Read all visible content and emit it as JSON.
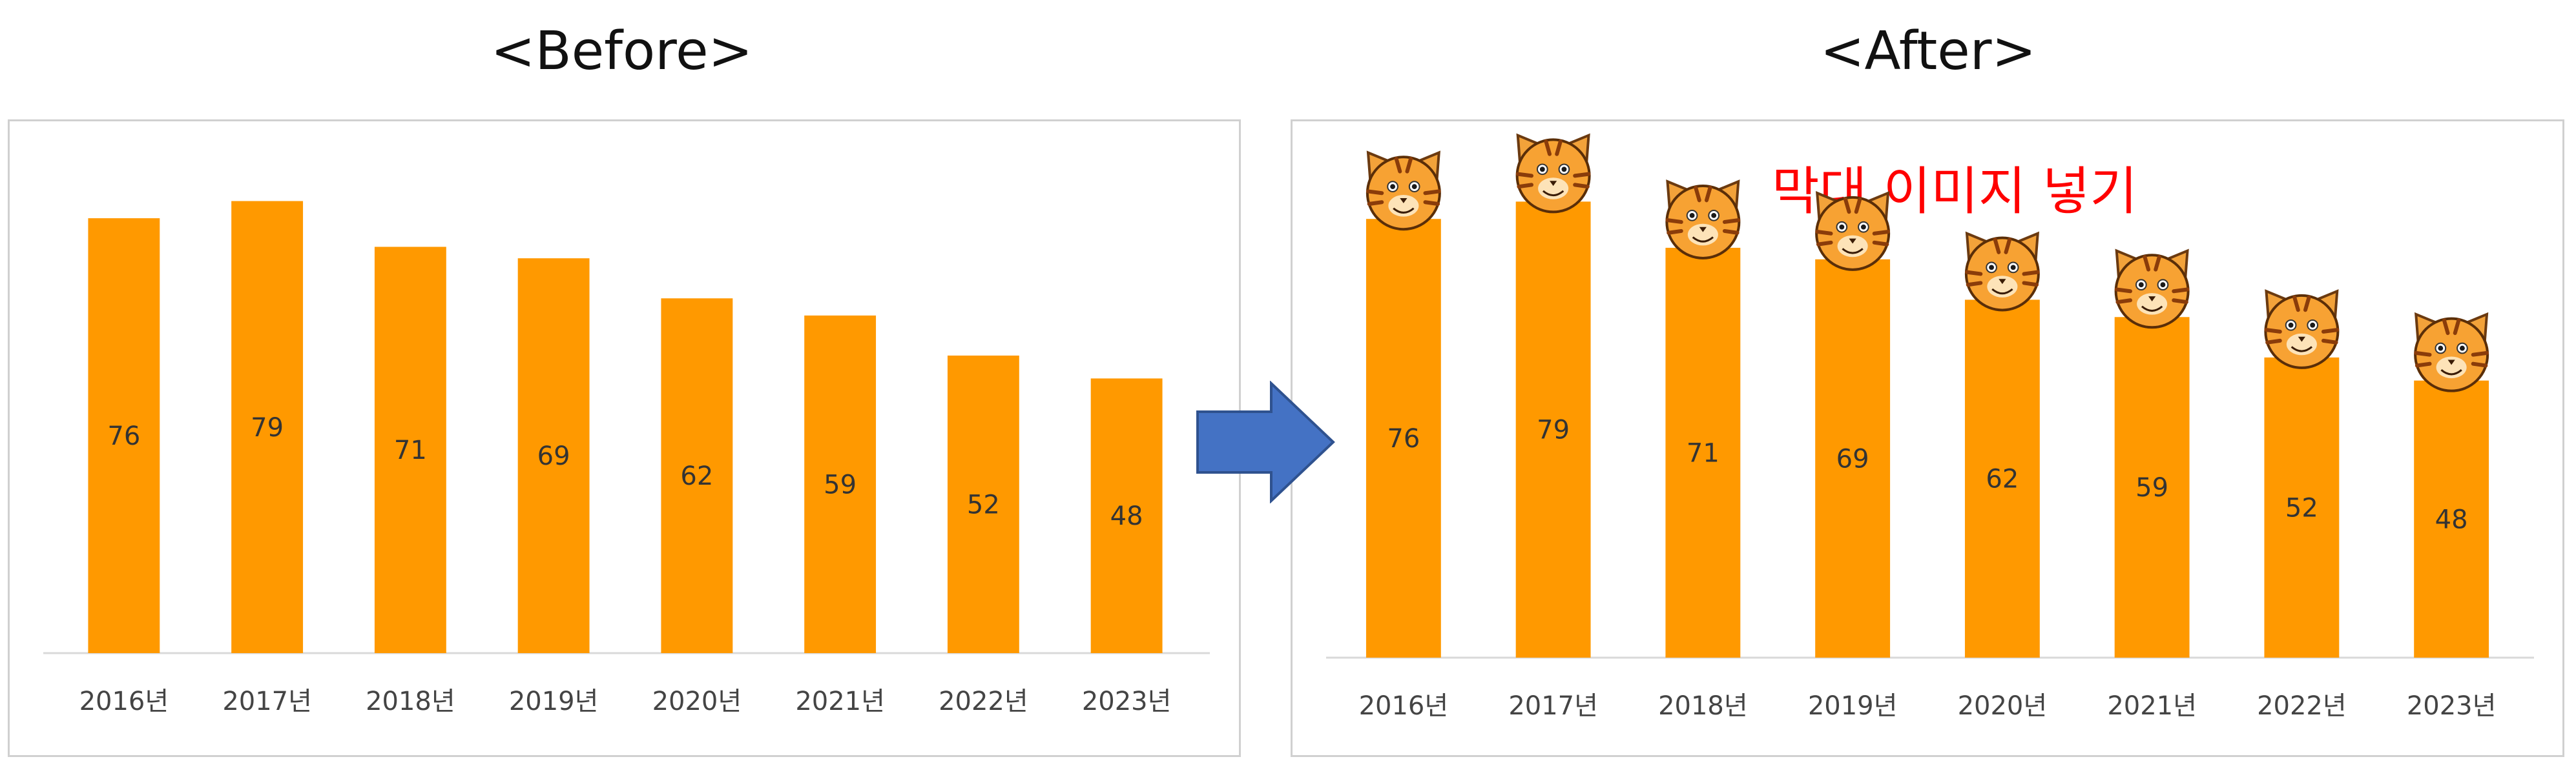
{
  "titles": {
    "before": "<Before>",
    "after": "<After>"
  },
  "colors": {
    "bar": "#FF9900",
    "arrow": "#4472C4",
    "after_title": "#FF0000"
  },
  "icons": {
    "bar_top": "tiger-face-icon",
    "transition": "right-arrow-icon"
  },
  "chart_data": [
    {
      "type": "bar",
      "panel": "before",
      "categories": [
        "2016년",
        "2017년",
        "2018년",
        "2019년",
        "2020년",
        "2021년",
        "2022년",
        "2023년"
      ],
      "values": [
        76,
        79,
        71,
        69,
        62,
        59,
        52,
        48
      ],
      "title": "",
      "xlabel": "",
      "ylabel": "",
      "ylim": [
        0,
        90
      ],
      "grid": false,
      "data_labels": true
    },
    {
      "type": "bar",
      "panel": "after",
      "categories": [
        "2016년",
        "2017년",
        "2018년",
        "2019년",
        "2020년",
        "2021년",
        "2022년",
        "2023년"
      ],
      "values": [
        76,
        79,
        71,
        69,
        62,
        59,
        52,
        48
      ],
      "title": "막대 이미지 넣기",
      "xlabel": "",
      "ylabel": "",
      "ylim": [
        0,
        90
      ],
      "grid": false,
      "data_labels": true,
      "bar_top_icon": "tiger-face-icon"
    }
  ]
}
